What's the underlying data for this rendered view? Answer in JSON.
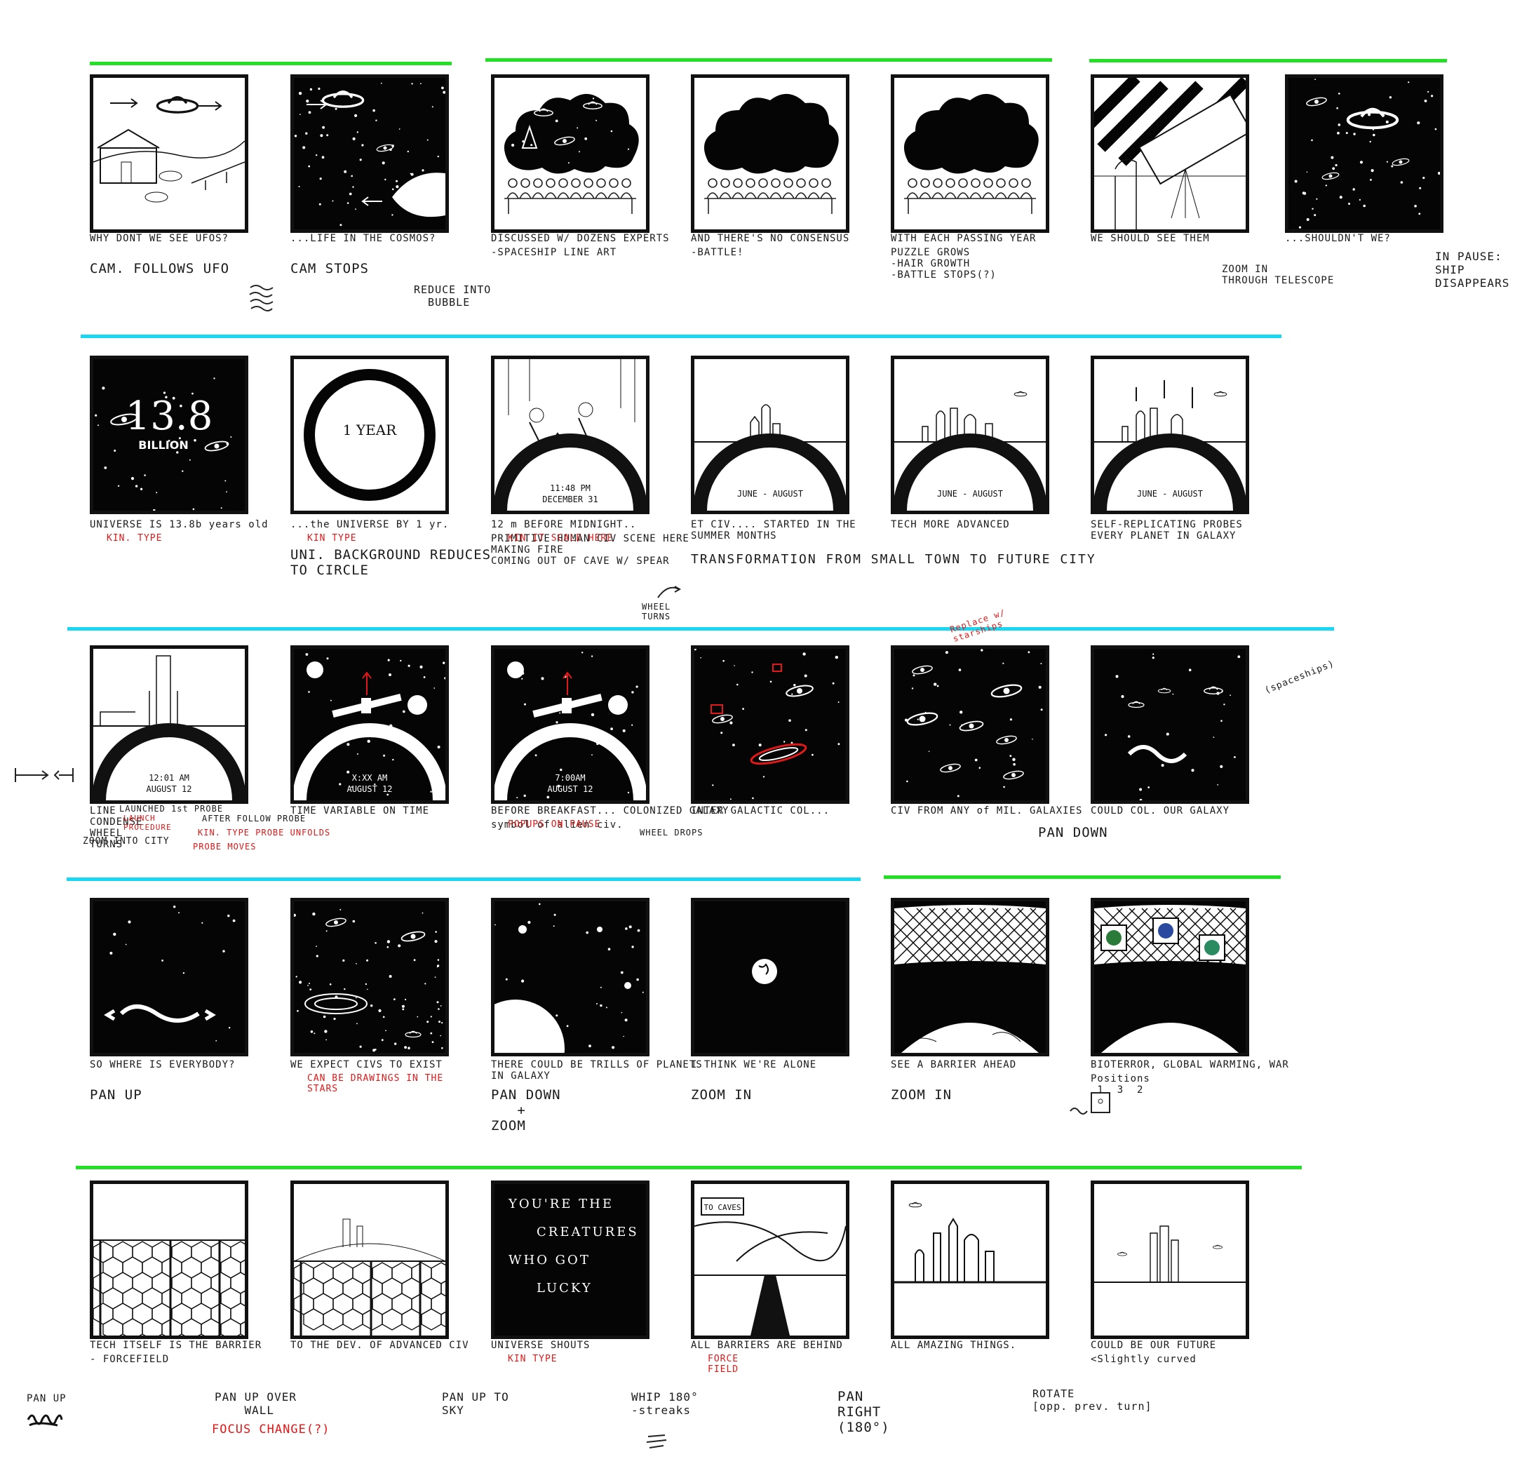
{
  "rows": [
    {
      "panels": [
        {
          "id": "r1p1",
          "dark": false,
          "art": "farm",
          "caption": "WHY DONT WE SEE UFOS?",
          "action": "CAM. FOLLOWS UFO"
        },
        {
          "id": "r1p2",
          "dark": true,
          "art": "space-ufo",
          "caption": "...LIFE IN THE COSMOS?",
          "action": "CAM STOPS"
        },
        {
          "id": "r1p3",
          "dark": false,
          "art": "cloud-doodles",
          "caption": "DISCUSSED W/ DOZENS EXPERTS",
          "sub": "-SPACESHIP LINE ART"
        },
        {
          "id": "r1p4",
          "dark": false,
          "art": "cloud-plain",
          "caption": "AND THERE'S NO CONSENSUS",
          "sub": "-BATTLE!"
        },
        {
          "id": "r1p5",
          "dark": false,
          "art": "cloud-plain",
          "caption": "WITH EACH PASSING YEAR",
          "sub": "PUZZLE GROWS\n-HAIR GROWTH\n-BATTLE STOPS(?)"
        },
        {
          "id": "r1p6",
          "dark": false,
          "art": "telescope",
          "caption": "WE SHOULD SEE THEM"
        },
        {
          "id": "r1p7",
          "dark": true,
          "art": "space-ufo2",
          "caption": "...SHOULDN'T WE?"
        }
      ]
    },
    {
      "panels": [
        {
          "id": "r2p1",
          "dark": true,
          "art": "billion",
          "caption": "UNIVERSE IS 13.8b years old",
          "red": "KIN. TYPE",
          "bigtext": "13.8",
          "bigsub": "BILLION"
        },
        {
          "id": "r2p2",
          "dark": false,
          "art": "ring",
          "caption": "...the UNIVERSE BY 1 yr.",
          "red": "KIN TYPE",
          "action": "UNI. BACKGROUND REDUCES\nTO CIRCLE",
          "ringtext": "1 YEAR"
        },
        {
          "id": "r2p3",
          "dark": false,
          "art": "arc-cave",
          "caption": "12 m BEFORE MIDNIGHT..",
          "red": "KIN IT SCALE HERE",
          "sub": "PRIMITIVE HUMAN CIV SCENE HERE\nMAKING FIRE\nCOMING OUT OF CAVE W/ SPEAR",
          "arctext": "11:48 PM\nDECEMBER 31"
        },
        {
          "id": "r2p4",
          "dark": false,
          "art": "arc-town",
          "caption": "ET CIV.... STARTED IN THE\nSUMMER MONTHS",
          "arctext": "JUNE - AUGUST"
        },
        {
          "id": "r2p5",
          "dark": false,
          "art": "arc-city",
          "caption": "TECH MORE ADVANCED",
          "arctext": "JUNE - AUGUST"
        },
        {
          "id": "r2p6",
          "dark": false,
          "art": "arc-rockets",
          "caption": "SELF-REPLICATING PROBES\nEVERY PLANET IN GALAXY",
          "arctext": "JUNE - AUGUST"
        }
      ]
    },
    {
      "panels": [
        {
          "id": "r3p1",
          "dark": false,
          "art": "arc-launch",
          "caption": "LINE\nCONDENSE\nWHEEL\nTURNS",
          "arctext": "12:01 AM\nAUGUST 12"
        },
        {
          "id": "r3p2",
          "dark": true,
          "art": "arc-space",
          "caption": "TIME VARIABLE ON TIME",
          "arctext": "X:XX AM\nAUGUST 12"
        },
        {
          "id": "r3p3",
          "dark": true,
          "art": "arc-space",
          "caption": "BEFORE BREAKFAST... COLONIZED GALAXY",
          "sub": "symbol of alien civ.",
          "red": "POPUPS ON PAUSE",
          "arctext": "7:00AM\nAUGUST 12"
        },
        {
          "id": "r3p4",
          "dark": true,
          "art": "galaxies-red",
          "caption": "INTER GALACTIC COL..."
        },
        {
          "id": "r3p5",
          "dark": true,
          "art": "galaxies",
          "caption": "CIV FROM ANY of MIL. GALAXIES"
        },
        {
          "id": "r3p6",
          "dark": true,
          "art": "earth-galaxy",
          "caption": "COULD COL. OUR GALAXY"
        }
      ]
    },
    {
      "panels": [
        {
          "id": "r4p1",
          "dark": true,
          "art": "earth-galaxy2",
          "caption": "SO WHERE IS EVERYBODY?",
          "action": "PAN UP"
        },
        {
          "id": "r4p2",
          "dark": true,
          "art": "star-ufos",
          "caption": "WE EXPECT CIVS TO EXIST",
          "red": "CAN BE DRAWINGS IN THE\nSTARS"
        },
        {
          "id": "r4p3",
          "dark": true,
          "art": "planets",
          "caption": "THERE COULD BE TRILLS OF PLANETS\nIN GALAXY",
          "action": "PAN DOWN\n   +\nZOOM"
        },
        {
          "id": "r4p4",
          "dark": true,
          "art": "lone-planet",
          "caption": "I THINK WE'RE ALONE",
          "action": "ZOOM IN"
        },
        {
          "id": "r4p5",
          "dark": true,
          "art": "net",
          "caption": "SEE A BARRIER AHEAD",
          "action": "ZOOM IN"
        },
        {
          "id": "r4p6",
          "dark": true,
          "art": "net-globes",
          "caption": "BIOTERROR, GLOBAL WARMING, WAR",
          "sub": "Positions\n 1  3  2"
        }
      ]
    },
    {
      "panels": [
        {
          "id": "r5p1",
          "dark": false,
          "art": "hex",
          "caption": "TECH ITSELF IS THE BARRIER",
          "sub": "- FORCEFIELD"
        },
        {
          "id": "r5p2",
          "dark": false,
          "art": "hex-hill",
          "caption": "TO THE DEV. OF ADVANCED CIV"
        },
        {
          "id": "r5p3",
          "dark": true,
          "art": "text",
          "caption": "UNIVERSE SHOUTS",
          "red": "KIN TYPE",
          "lines": [
            "YOU'RE  THE",
            "CREATURES",
            "WHO  GOT",
            "LUCKY"
          ]
        },
        {
          "id": "r5p4",
          "dark": false,
          "art": "road",
          "caption": "ALL BARRIERS ARE BEHIND",
          "red": "FORCE\nFIELD",
          "sign": "TO CAVES"
        },
        {
          "id": "r5p5",
          "dark": false,
          "art": "skyline",
          "caption": "ALL AMAZING THINGS."
        },
        {
          "id": "r5p6",
          "dark": false,
          "art": "skyline-thin",
          "caption": "COULD BE OUR FUTURE",
          "sub": "<Slightly curved"
        }
      ]
    }
  ],
  "notes": {
    "reduce_bubble": "REDUCE INTO\n  BUBBLE",
    "zoom_telescope": "ZOOM IN\nTHROUGH TELESCOPE",
    "pause_ship": "IN PAUSE:\nSHIP\nDISAPPEARS",
    "transformation": "TRANSFORMATION FROM SMALL TOWN TO FUTURE CITY",
    "wheel_turns": "WHEEL\nTURNS",
    "launched": "LAUNCHED 1st PROBE",
    "launch_red": "LAUNCH\nPROCEDURE",
    "zoom_city": "ZOOM INTO CITY",
    "after_follow": "AFTER FOLLOW PROBE",
    "kin_unfolds": "KIN. TYPE PROBE UNFOLDS",
    "probe_moves": "PROBE MOVES",
    "wheel_drops": "WHEEL DROPS",
    "replace_starships": "Replace w/\nstarships",
    "spaceships": "(spaceships)",
    "pan_down": "PAN DOWN",
    "pan_up_bottom": "PAN UP",
    "pan_up_wall": "PAN UP OVER\n    WALL",
    "focus_change": "FOCUS CHANGE(?)",
    "pan_up_sky": "PAN UP TO\nSKY",
    "whip": "WHIP 180°\n-streaks",
    "pan_right": "PAN\nRIGHT\n(180°)",
    "rotate": "ROTATE\n[opp. prev. turn]"
  }
}
